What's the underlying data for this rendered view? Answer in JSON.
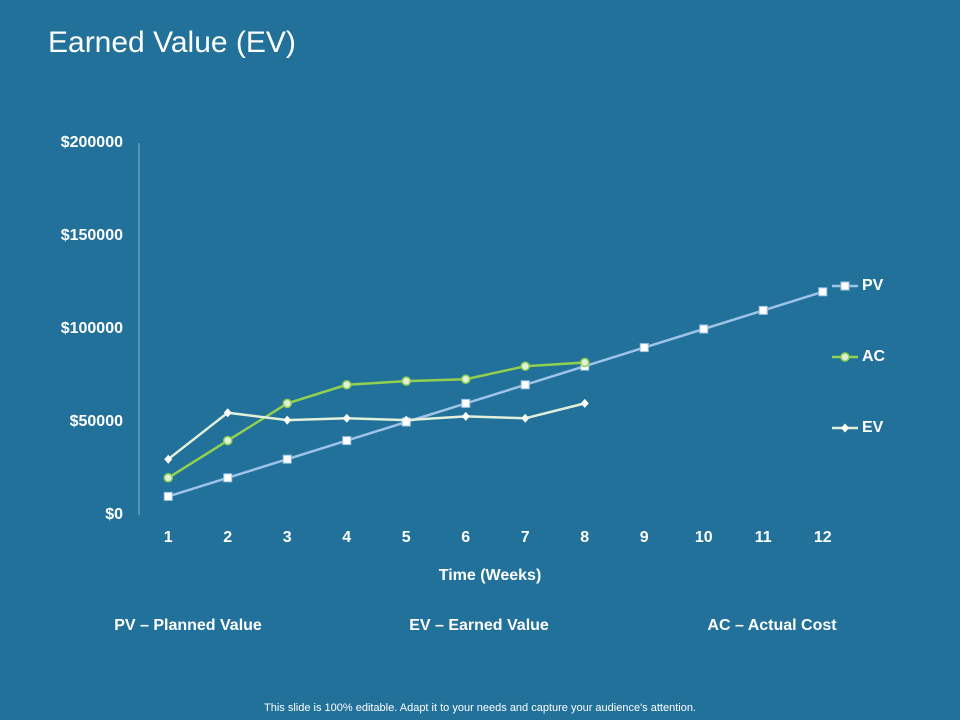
{
  "chart_data": {
    "type": "line",
    "title": "Earned Value (EV)",
    "x_label": "Time (Weeks)",
    "categories": [
      "1",
      "2",
      "3",
      "4",
      "5",
      "6",
      "7",
      "8",
      "9",
      "10",
      "11",
      "12"
    ],
    "series": [
      {
        "name": "PV",
        "color": "#9dc3e6",
        "marker": "square",
        "values": [
          10000,
          20000,
          30000,
          40000,
          50000,
          60000,
          70000,
          80000,
          90000,
          100000,
          110000,
          120000
        ]
      },
      {
        "name": "AC",
        "color": "#92d050",
        "marker": "circle",
        "values": [
          20000,
          40000,
          60000,
          70000,
          72000,
          73000,
          80000,
          82000,
          null,
          null,
          null,
          null
        ]
      },
      {
        "name": "EV",
        "color": "#e2f0d9",
        "marker": "diamond",
        "values": [
          30000,
          55000,
          51000,
          52000,
          51000,
          53000,
          52000,
          60000,
          null,
          null,
          null,
          null
        ]
      }
    ],
    "ylim": [
      0,
      200000
    ],
    "yticks": [
      {
        "value": 0,
        "label": "$0"
      },
      {
        "value": 50000,
        "label": "$50000"
      },
      {
        "value": 100000,
        "label": "$100000"
      },
      {
        "value": 150000,
        "label": "$150000"
      },
      {
        "value": 200000,
        "label": "$200000"
      }
    ],
    "grid": false,
    "legend": "right"
  },
  "notes": [
    "PV – Planned Value",
    "EV – Earned Value",
    "AC – Actual Cost"
  ],
  "footer": "This slide is 100% editable. Adapt it to your needs and capture your audience's attention."
}
